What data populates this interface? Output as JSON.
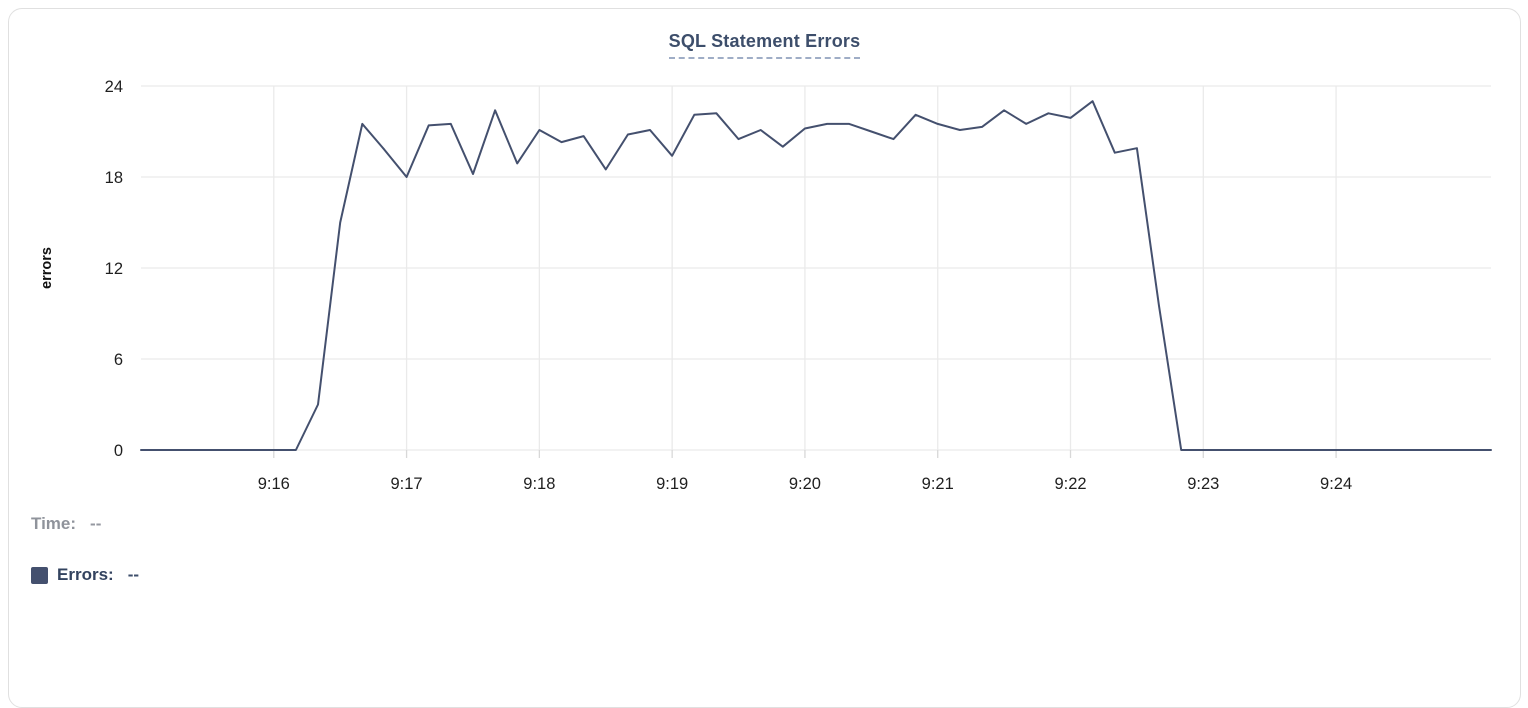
{
  "chart_data": {
    "type": "line",
    "title": "SQL Statement Errors",
    "ylabel": "errors",
    "ylim": [
      0,
      24
    ],
    "y_ticks": [
      0,
      6,
      12,
      18,
      24
    ],
    "x_ticks": [
      "9:16",
      "9:17",
      "9:18",
      "9:19",
      "9:20",
      "9:21",
      "9:22",
      "9:23",
      "9:24"
    ],
    "xlim": [
      "9:15:00",
      "9:25:10"
    ],
    "grid": true,
    "colors": {
      "line": "#44506e",
      "grid": "#eaeaea",
      "axis_tick": "#d8d8d8",
      "tick_text": "#1f1f1f"
    },
    "series": [
      {
        "name": "Errors",
        "color": "#44506e",
        "x": [
          "9:15:00",
          "9:15:10",
          "9:15:20",
          "9:15:30",
          "9:15:40",
          "9:15:50",
          "9:16:00",
          "9:16:10",
          "9:16:20",
          "9:16:30",
          "9:16:40",
          "9:16:50",
          "9:17:00",
          "9:17:10",
          "9:17:20",
          "9:17:30",
          "9:17:40",
          "9:17:50",
          "9:18:00",
          "9:18:10",
          "9:18:20",
          "9:18:30",
          "9:18:40",
          "9:18:50",
          "9:19:00",
          "9:19:10",
          "9:19:20",
          "9:19:30",
          "9:19:40",
          "9:19:50",
          "9:20:00",
          "9:20:10",
          "9:20:20",
          "9:20:30",
          "9:20:40",
          "9:20:50",
          "9:21:00",
          "9:21:10",
          "9:21:20",
          "9:21:30",
          "9:21:40",
          "9:21:50",
          "9:22:00",
          "9:22:10",
          "9:22:20",
          "9:22:30",
          "9:22:40",
          "9:22:50",
          "9:23:00",
          "9:23:10",
          "9:23:20",
          "9:23:30",
          "9:23:40",
          "9:23:50",
          "9:24:00",
          "9:24:10",
          "9:24:20",
          "9:24:30",
          "9:24:40",
          "9:24:50",
          "9:25:00",
          "9:25:10"
        ],
        "values": [
          0,
          0,
          0,
          0,
          0,
          0,
          0,
          0,
          3,
          15,
          21.5,
          19.8,
          18,
          21.4,
          21.5,
          18.2,
          22.4,
          18.9,
          21.1,
          20.3,
          20.7,
          18.5,
          20.8,
          21.1,
          19.4,
          22.1,
          22.2,
          20.5,
          21.1,
          20,
          21.2,
          21.5,
          21.5,
          21,
          20.5,
          22.1,
          21.5,
          21.1,
          21.3,
          22.4,
          21.5,
          22.2,
          21.9,
          23,
          19.6,
          19.9,
          9.5,
          0,
          0,
          0,
          0,
          0,
          0,
          0,
          0,
          0,
          0,
          0,
          0,
          0,
          0,
          0
        ]
      }
    ]
  },
  "readout": {
    "time_label": "Time:",
    "time_value": "--",
    "errors_label": "Errors:",
    "errors_value": "--",
    "swatch_color": "#44506e"
  }
}
